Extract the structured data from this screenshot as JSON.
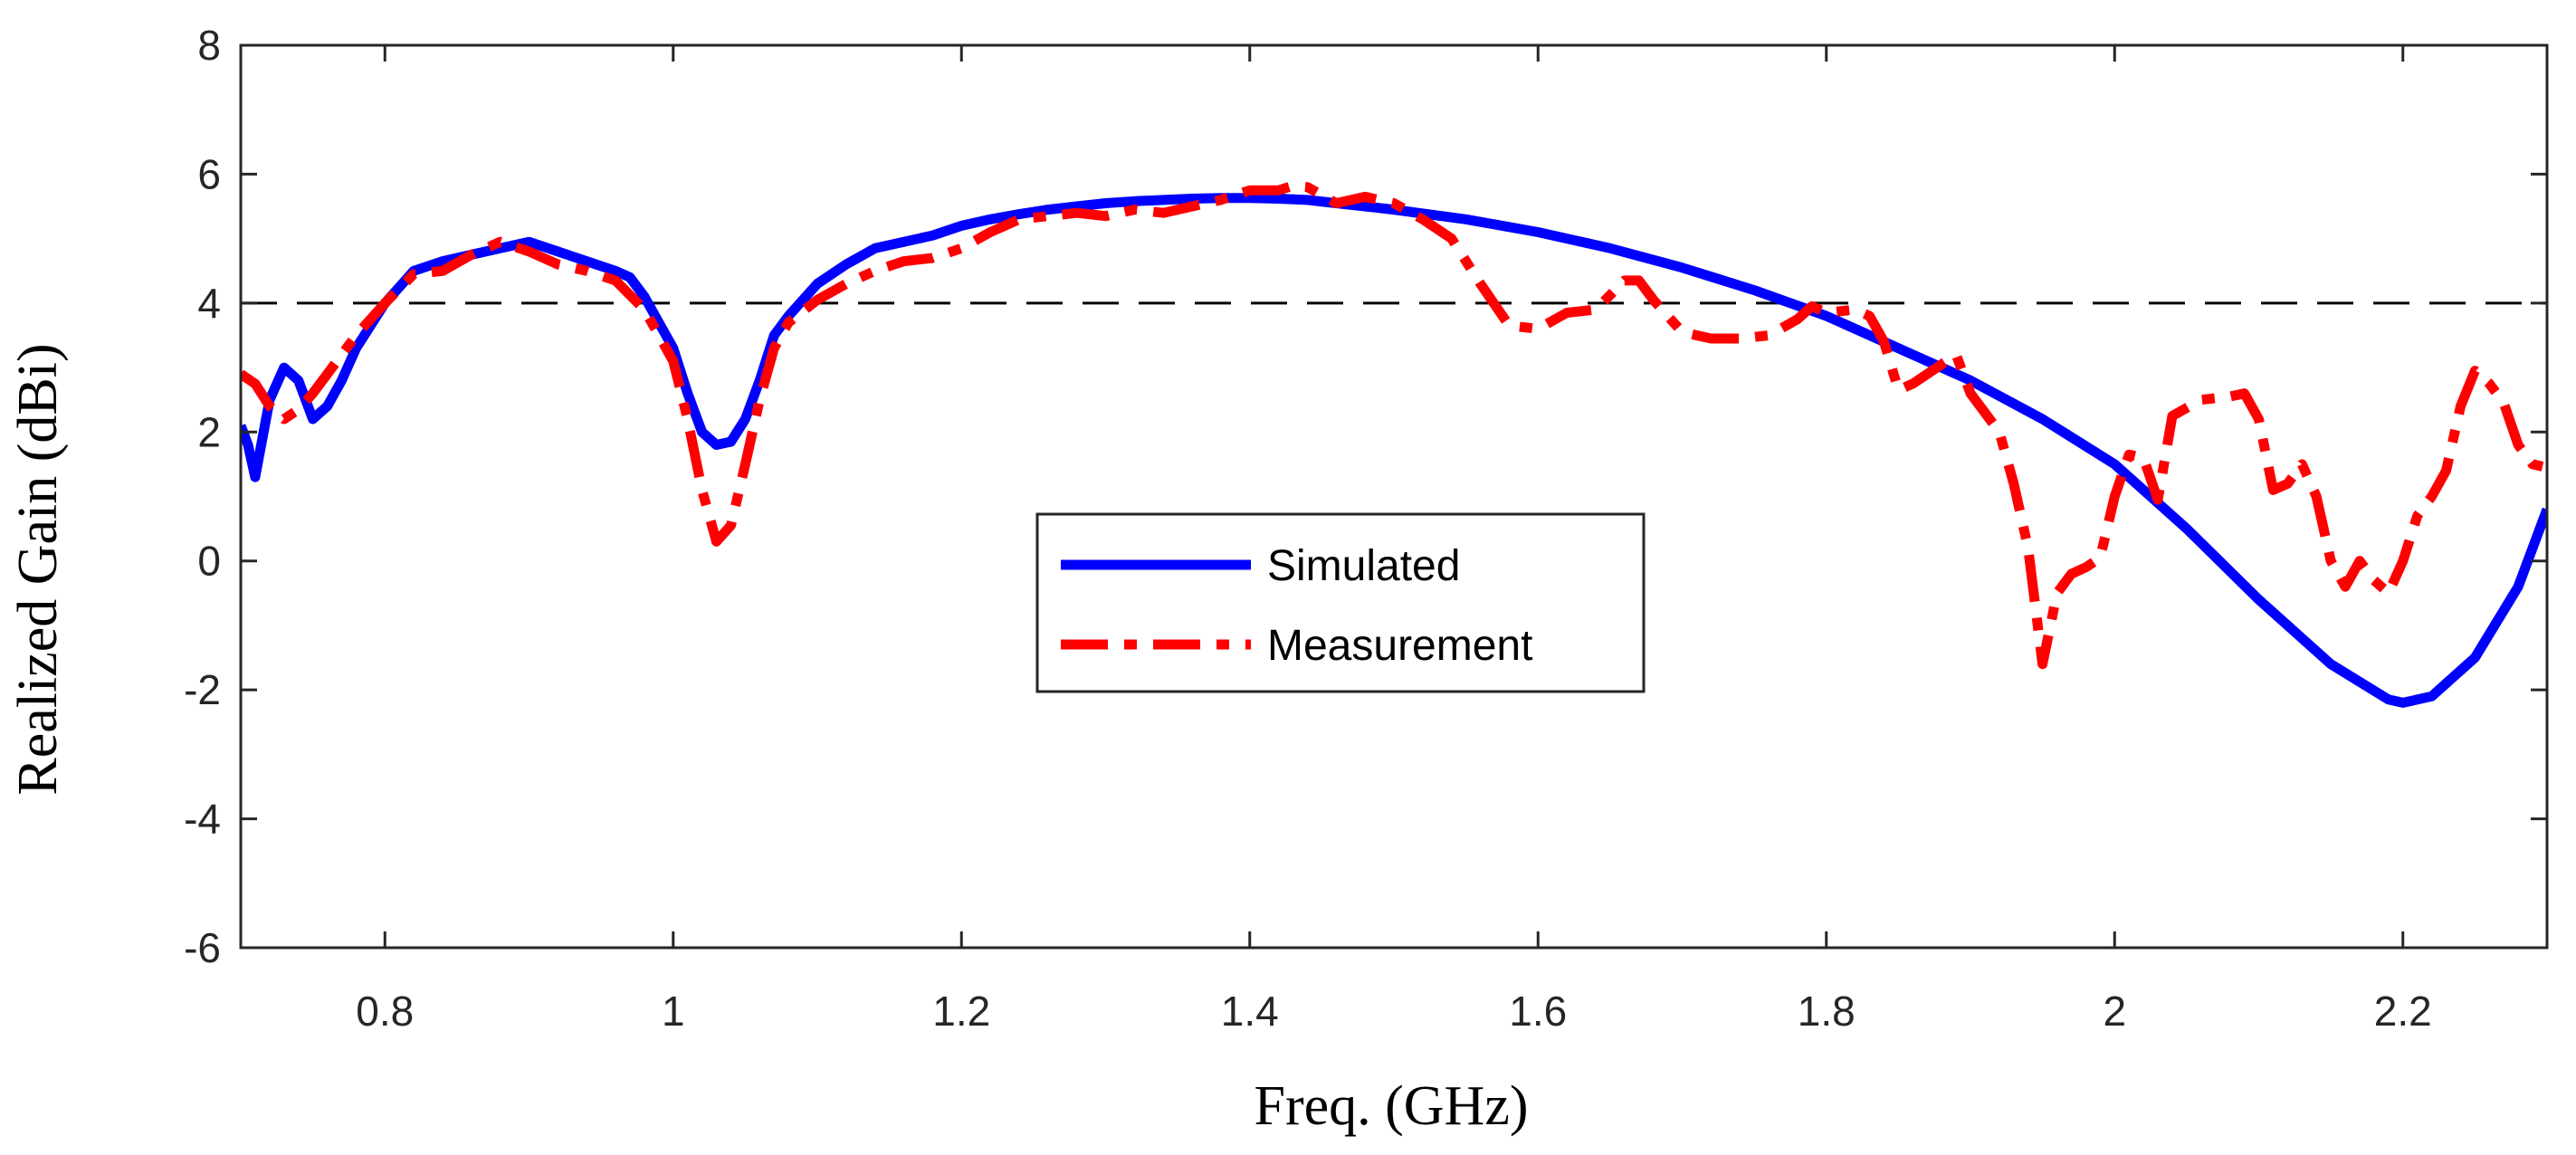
{
  "chart_data": {
    "type": "line",
    "title": "",
    "xlabel": "Freq. (GHz)",
    "ylabel": "Realized Gain (dBi)",
    "xlim": [
      0.7,
      2.3
    ],
    "ylim": [
      -6,
      8
    ],
    "x_ticks": [
      0.8,
      1.0,
      1.2,
      1.4,
      1.6,
      1.8,
      2.0,
      2.2
    ],
    "x_tick_labels": [
      "0.8",
      "1",
      "1.2",
      "1.4",
      "1.6",
      "1.8",
      "2",
      "2.2"
    ],
    "y_ticks": [
      -6,
      -4,
      -2,
      0,
      2,
      4,
      6,
      8
    ],
    "y_tick_labels": [
      "-6",
      "-4",
      "-2",
      "0",
      "2",
      "4",
      "6",
      "8"
    ],
    "grid": false,
    "legend_position": "center",
    "reference_line": {
      "y": 4,
      "style": "dashed",
      "color": "#000000"
    },
    "series": [
      {
        "name": "Simulated",
        "color": "#0000ff",
        "style": "solid",
        "x": [
          0.7,
          0.705,
          0.71,
          0.72,
          0.73,
          0.74,
          0.75,
          0.76,
          0.77,
          0.78,
          0.8,
          0.82,
          0.84,
          0.86,
          0.88,
          0.9,
          0.92,
          0.94,
          0.96,
          0.97,
          0.98,
          0.99,
          1.0,
          1.01,
          1.02,
          1.03,
          1.04,
          1.05,
          1.06,
          1.07,
          1.08,
          1.1,
          1.12,
          1.14,
          1.16,
          1.18,
          1.2,
          1.22,
          1.24,
          1.26,
          1.28,
          1.3,
          1.32,
          1.34,
          1.36,
          1.38,
          1.4,
          1.42,
          1.44,
          1.46,
          1.48,
          1.5,
          1.55,
          1.6,
          1.65,
          1.7,
          1.75,
          1.8,
          1.85,
          1.9,
          1.95,
          2.0,
          2.05,
          2.1,
          2.15,
          2.19,
          2.2,
          2.22,
          2.25,
          2.28,
          2.3
        ],
        "values": [
          2.1,
          1.8,
          1.3,
          2.5,
          3.0,
          2.8,
          2.2,
          2.4,
          2.8,
          3.3,
          4.0,
          4.5,
          4.65,
          4.75,
          4.85,
          4.95,
          4.8,
          4.65,
          4.5,
          4.4,
          4.1,
          3.7,
          3.3,
          2.6,
          2.0,
          1.8,
          1.85,
          2.2,
          2.8,
          3.5,
          3.8,
          4.3,
          4.6,
          4.85,
          4.95,
          5.05,
          5.2,
          5.3,
          5.38,
          5.45,
          5.5,
          5.55,
          5.58,
          5.6,
          5.62,
          5.63,
          5.63,
          5.62,
          5.6,
          5.55,
          5.5,
          5.45,
          5.3,
          5.1,
          4.85,
          4.55,
          4.2,
          3.8,
          3.3,
          2.8,
          2.2,
          1.5,
          0.5,
          -0.6,
          -1.6,
          -2.15,
          -2.2,
          -2.1,
          -1.5,
          -0.4,
          0.8
        ]
      },
      {
        "name": "Measurement",
        "color": "#ff0000",
        "style": "dashdot",
        "x": [
          0.7,
          0.71,
          0.72,
          0.73,
          0.74,
          0.75,
          0.76,
          0.78,
          0.8,
          0.82,
          0.84,
          0.86,
          0.88,
          0.9,
          0.92,
          0.94,
          0.96,
          0.98,
          1.0,
          1.01,
          1.02,
          1.03,
          1.04,
          1.05,
          1.06,
          1.07,
          1.08,
          1.1,
          1.12,
          1.14,
          1.16,
          1.18,
          1.2,
          1.22,
          1.24,
          1.26,
          1.28,
          1.3,
          1.32,
          1.34,
          1.36,
          1.38,
          1.4,
          1.42,
          1.43,
          1.44,
          1.46,
          1.48,
          1.5,
          1.52,
          1.54,
          1.56,
          1.58,
          1.6,
          1.62,
          1.64,
          1.66,
          1.67,
          1.68,
          1.7,
          1.72,
          1.74,
          1.76,
          1.78,
          1.79,
          1.8,
          1.82,
          1.83,
          1.84,
          1.85,
          1.86,
          1.88,
          1.89,
          1.9,
          1.92,
          1.93,
          1.94,
          1.95,
          1.96,
          1.97,
          1.98,
          1.99,
          2.0,
          2.01,
          2.02,
          2.03,
          2.04,
          2.06,
          2.08,
          2.09,
          2.1,
          2.11,
          2.12,
          2.13,
          2.14,
          2.15,
          2.16,
          2.17,
          2.18,
          2.19,
          2.2,
          2.21,
          2.22,
          2.23,
          2.24,
          2.25,
          2.26,
          2.27,
          2.28,
          2.29,
          2.3
        ],
        "values": [
          2.9,
          2.75,
          2.4,
          2.2,
          2.35,
          2.6,
          2.9,
          3.5,
          4.0,
          4.45,
          4.5,
          4.75,
          4.95,
          4.8,
          4.6,
          4.5,
          4.35,
          3.9,
          3.1,
          2.2,
          1.1,
          0.3,
          0.55,
          1.5,
          2.5,
          3.3,
          3.7,
          4.05,
          4.3,
          4.5,
          4.65,
          4.7,
          4.85,
          5.1,
          5.3,
          5.35,
          5.4,
          5.35,
          5.45,
          5.4,
          5.5,
          5.6,
          5.75,
          5.75,
          5.82,
          5.8,
          5.55,
          5.65,
          5.55,
          5.3,
          5.0,
          4.3,
          3.65,
          3.6,
          3.85,
          3.9,
          4.35,
          4.35,
          4.05,
          3.55,
          3.45,
          3.45,
          3.5,
          3.75,
          3.95,
          3.85,
          3.9,
          3.8,
          3.4,
          2.65,
          2.75,
          3.05,
          3.2,
          2.6,
          2.0,
          1.2,
          0.2,
          -1.6,
          -0.5,
          -0.2,
          -0.1,
          0.05,
          1.0,
          1.65,
          1.6,
          0.95,
          2.25,
          2.5,
          2.55,
          2.6,
          2.2,
          1.1,
          1.2,
          1.5,
          1.0,
          0.0,
          -0.4,
          0.0,
          -0.3,
          -0.5,
          0.0,
          0.7,
          1.0,
          1.4,
          2.4,
          2.95,
          2.75,
          2.45,
          1.8,
          1.5,
          1.45
        ]
      }
    ]
  }
}
